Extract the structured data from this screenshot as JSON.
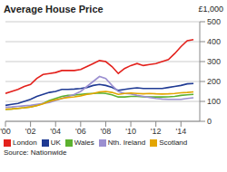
{
  "chart_data": {
    "type": "line",
    "title": "Average House Price",
    "unit": "£1,000",
    "source": "Source: Nationwide",
    "x": [
      2000,
      2000.5,
      2001,
      2001.5,
      2002,
      2002.5,
      2003,
      2003.5,
      2004,
      2004.5,
      2005,
      2005.5,
      2006,
      2006.5,
      2007,
      2007.5,
      2008,
      2008.5,
      2009,
      2009.5,
      2010,
      2010.5,
      2011,
      2011.5,
      2012,
      2012.5,
      2013,
      2013.5,
      2014,
      2014.5,
      2015
    ],
    "xlim": [
      2000,
      2015.5
    ],
    "xticks": [
      {
        "value": 2000,
        "label": "'00"
      },
      {
        "value": 2002,
        "label": "'02"
      },
      {
        "value": 2004,
        "label": "'04"
      },
      {
        "value": 2006,
        "label": "'06"
      },
      {
        "value": 2008,
        "label": "'08"
      },
      {
        "value": 2010,
        "label": "'10"
      },
      {
        "value": 2012,
        "label": "'12"
      },
      {
        "value": 2014,
        "label": "'14"
      }
    ],
    "ylim": [
      0,
      500
    ],
    "yticks": [
      0,
      100,
      200,
      300,
      400,
      500
    ],
    "grid": true,
    "legend": "bottom",
    "series": [
      {
        "name": "London",
        "color": "#e3211c",
        "values": [
          140,
          150,
          160,
          175,
          185,
          215,
          235,
          240,
          245,
          255,
          255,
          255,
          260,
          275,
          290,
          305,
          300,
          275,
          240,
          265,
          280,
          290,
          280,
          285,
          290,
          300,
          310,
          340,
          375,
          405,
          410
        ]
      },
      {
        "name": "UK",
        "color": "#1f3a93",
        "values": [
          80,
          85,
          90,
          100,
          110,
          125,
          135,
          145,
          150,
          160,
          160,
          162,
          165,
          170,
          180,
          185,
          180,
          170,
          155,
          160,
          165,
          168,
          165,
          165,
          165,
          165,
          170,
          175,
          180,
          188,
          190
        ]
      },
      {
        "name": "Wales",
        "color": "#5cb130",
        "values": [
          60,
          62,
          65,
          68,
          72,
          80,
          90,
          105,
          115,
          125,
          130,
          132,
          135,
          138,
          140,
          142,
          140,
          133,
          122,
          122,
          125,
          125,
          123,
          122,
          122,
          122,
          123,
          125,
          130,
          133,
          135
        ]
      },
      {
        "name": "Nth. Ireland",
        "color": "#9b8fd0",
        "values": [
          70,
          72,
          75,
          78,
          80,
          85,
          90,
          95,
          105,
          115,
          125,
          135,
          150,
          175,
          200,
          225,
          215,
          180,
          150,
          140,
          138,
          130,
          125,
          120,
          115,
          112,
          110,
          110,
          110,
          115,
          118
        ]
      },
      {
        "name": "Scotland",
        "color": "#e3a500",
        "values": [
          60,
          62,
          65,
          68,
          72,
          78,
          88,
          100,
          108,
          115,
          120,
          123,
          128,
          135,
          140,
          148,
          150,
          145,
          135,
          140,
          142,
          140,
          138,
          140,
          138,
          137,
          138,
          140,
          143,
          145,
          148
        ]
      }
    ]
  }
}
